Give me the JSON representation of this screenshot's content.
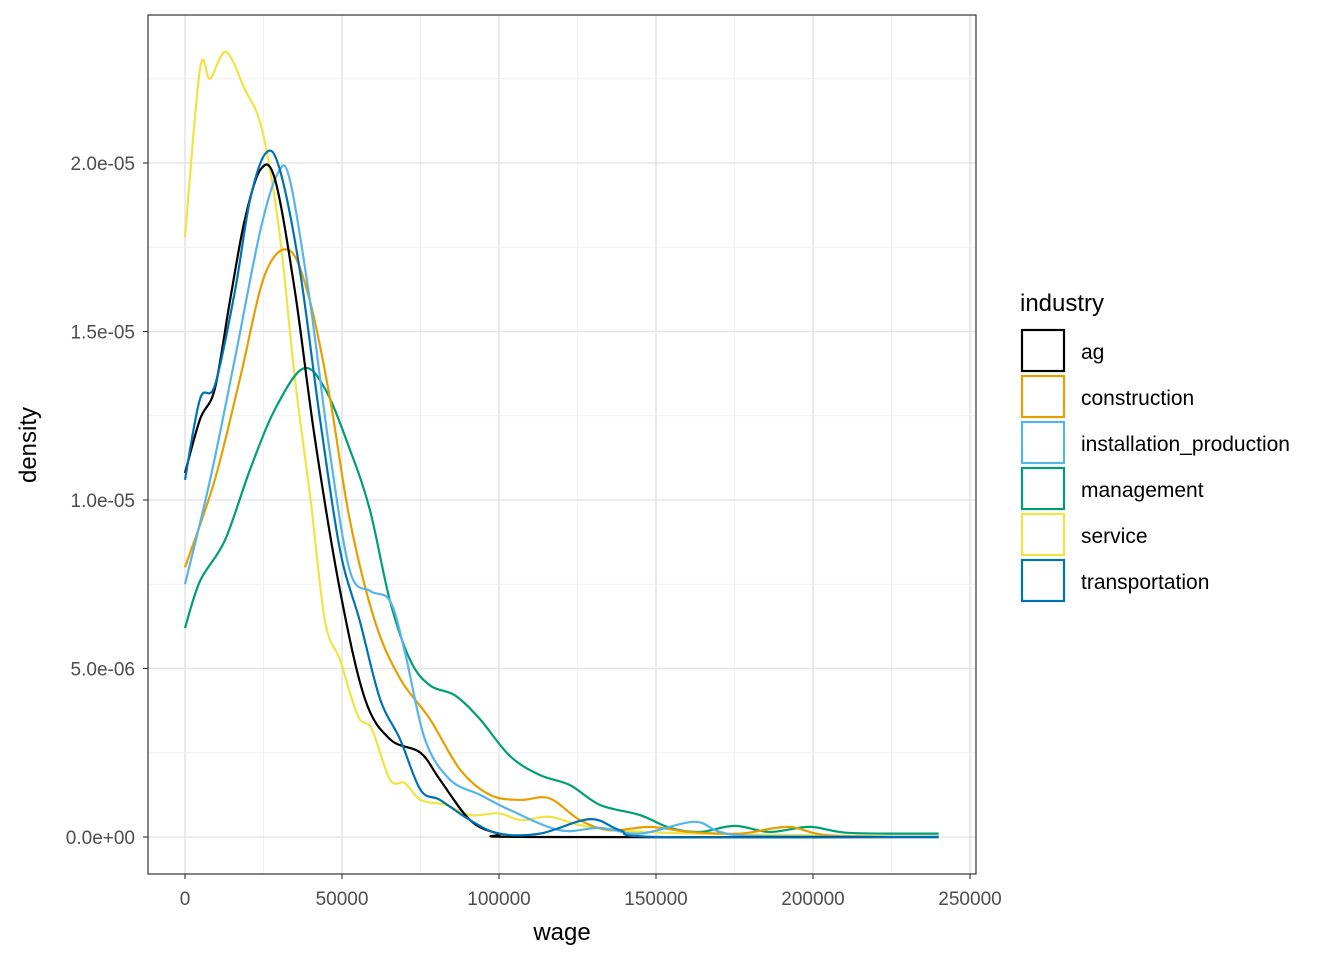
{
  "chart_data": {
    "type": "line",
    "title": "",
    "xlabel": "wage",
    "ylabel": "density",
    "xlim": [
      -12000,
      252000
    ],
    "ylim": [
      -1.1e-06,
      2.45e-05
    ],
    "x_ticks": [
      0,
      50000,
      100000,
      150000,
      200000,
      250000
    ],
    "x_tick_labels": [
      "0",
      "50000",
      "100000",
      "150000",
      "200000",
      "250000"
    ],
    "y_ticks": [
      0,
      5e-06,
      1e-05,
      1.5e-05,
      2e-05
    ],
    "y_tick_labels": [
      "0.0e+00",
      "5.0e-06",
      "1.0e-05",
      "1.5e-05",
      "2.0e-05"
    ],
    "grid": true,
    "legend_title": "industry",
    "legend_position": "right",
    "series": [
      {
        "name": "ag",
        "color": "#000000",
        "points": [
          [
            0,
            1.08e-05
          ],
          [
            4800,
            1.24e-05
          ],
          [
            9500,
            1.33e-05
          ],
          [
            14300,
            1.59e-05
          ],
          [
            19000,
            1.83e-05
          ],
          [
            24000,
            1.98e-05
          ],
          [
            28700,
            1.95e-05
          ],
          [
            35000,
            1.62e-05
          ],
          [
            41400,
            1.18e-05
          ],
          [
            49400,
            7.3e-06
          ],
          [
            57300,
            4.1e-06
          ],
          [
            65300,
            2.9e-06
          ],
          [
            75000,
            2.5e-06
          ],
          [
            81200,
            1.7e-06
          ],
          [
            90800,
            5e-07
          ],
          [
            100000,
            1e-07
          ],
          [
            110000,
            0
          ],
          [
            240000,
            0
          ]
        ]
      },
      {
        "name": "construction",
        "color": "#E69F00",
        "points": [
          [
            0,
            8e-06
          ],
          [
            9500,
            1.06e-05
          ],
          [
            17500,
            1.36e-05
          ],
          [
            25500,
            1.67e-05
          ],
          [
            33400,
            1.74e-05
          ],
          [
            39800,
            1.59e-05
          ],
          [
            46200,
            1.3e-05
          ],
          [
            52500,
            9.4e-06
          ],
          [
            60500,
            6.4e-06
          ],
          [
            68500,
            4.7e-06
          ],
          [
            78000,
            3.5e-06
          ],
          [
            87600,
            2e-06
          ],
          [
            97100,
            1.25e-06
          ],
          [
            106700,
            1.1e-06
          ],
          [
            116000,
            1.15e-06
          ],
          [
            125800,
            5e-07
          ],
          [
            135400,
            2e-07
          ],
          [
            148100,
            3e-07
          ],
          [
            160800,
            1.5e-07
          ],
          [
            176800,
            1e-07
          ],
          [
            192000,
            3e-07
          ],
          [
            205400,
            5e-08
          ],
          [
            240000,
            0
          ]
        ]
      },
      {
        "name": "installation_production",
        "color": "#56B4E9",
        "points": [
          [
            0,
            7.5e-06
          ],
          [
            8000,
            1.06e-05
          ],
          [
            15900,
            1.42e-05
          ],
          [
            24000,
            1.8e-05
          ],
          [
            29600,
            1.97e-05
          ],
          [
            33400,
            1.95e-05
          ],
          [
            39800,
            1.59e-05
          ],
          [
            46000,
            1.15e-05
          ],
          [
            52500,
            7.9e-06
          ],
          [
            59000,
            7.3e-06
          ],
          [
            65300,
            7e-06
          ],
          [
            70000,
            5.5e-06
          ],
          [
            76400,
            2.9e-06
          ],
          [
            84400,
            1.7e-06
          ],
          [
            94000,
            1.25e-06
          ],
          [
            103500,
            8e-07
          ],
          [
            119400,
            2e-07
          ],
          [
            132200,
            2.7e-07
          ],
          [
            144900,
            1e-07
          ],
          [
            162000,
            4.5e-07
          ],
          [
            170400,
            1.5e-07
          ],
          [
            183100,
            3e-08
          ],
          [
            240000,
            0
          ]
        ]
      },
      {
        "name": "management",
        "color": "#009E73",
        "points": [
          [
            0,
            6.2e-06
          ],
          [
            4800,
            7.6e-06
          ],
          [
            12700,
            8.8e-06
          ],
          [
            20700,
            1.09e-05
          ],
          [
            28700,
            1.27e-05
          ],
          [
            37600,
            1.39e-05
          ],
          [
            44600,
            1.33e-05
          ],
          [
            52500,
            1.15e-05
          ],
          [
            58900,
            9.7e-06
          ],
          [
            65300,
            7e-06
          ],
          [
            71700,
            5.25e-06
          ],
          [
            78000,
            4.5e-06
          ],
          [
            86000,
            4.2e-06
          ],
          [
            93900,
            3.5e-06
          ],
          [
            103500,
            2.4e-06
          ],
          [
            113000,
            1.84e-06
          ],
          [
            122600,
            1.54e-06
          ],
          [
            132200,
            9.5e-07
          ],
          [
            144900,
            6.5e-07
          ],
          [
            154500,
            2.7e-07
          ],
          [
            164000,
            1.5e-07
          ],
          [
            175000,
            3.3e-07
          ],
          [
            186300,
            1.5e-07
          ],
          [
            199000,
            3e-07
          ],
          [
            211800,
            1.2e-07
          ],
          [
            240000,
            1e-07
          ]
        ]
      },
      {
        "name": "service",
        "color": "#F0E442",
        "points": [
          [
            0,
            1.78e-05
          ],
          [
            4800,
            2.28e-05
          ],
          [
            8000,
            2.25e-05
          ],
          [
            13000,
            2.33e-05
          ],
          [
            19000,
            2.22e-05
          ],
          [
            24500,
            2.1e-05
          ],
          [
            30000,
            1.8e-05
          ],
          [
            35000,
            1.36e-05
          ],
          [
            40000,
            1e-05
          ],
          [
            44600,
            6.4e-06
          ],
          [
            49400,
            5.25e-06
          ],
          [
            55000,
            3.6e-06
          ],
          [
            59500,
            3.2e-06
          ],
          [
            65300,
            1.7e-06
          ],
          [
            70000,
            1.6e-06
          ],
          [
            75000,
            1.1e-06
          ],
          [
            83000,
            9.5e-07
          ],
          [
            91000,
            6.5e-07
          ],
          [
            100000,
            7e-07
          ],
          [
            107000,
            5e-07
          ],
          [
            116000,
            6e-07
          ],
          [
            126000,
            3.5e-07
          ],
          [
            138000,
            2e-07
          ],
          [
            164000,
            1e-07
          ],
          [
            240000,
            0
          ]
        ]
      },
      {
        "name": "transportation",
        "color": "#0072B2",
        "points": [
          [
            0,
            1.06e-05
          ],
          [
            4800,
            1.3e-05
          ],
          [
            9500,
            1.34e-05
          ],
          [
            15900,
            1.62e-05
          ],
          [
            20700,
            1.89e-05
          ],
          [
            25800,
            2.03e-05
          ],
          [
            30200,
            1.98e-05
          ],
          [
            36600,
            1.68e-05
          ],
          [
            43000,
            1.24e-05
          ],
          [
            49400,
            8.5e-06
          ],
          [
            55700,
            6.4e-06
          ],
          [
            62100,
            4.1e-06
          ],
          [
            68500,
            2.9e-06
          ],
          [
            75000,
            1.4e-06
          ],
          [
            81200,
            1.1e-06
          ],
          [
            90800,
            5e-07
          ],
          [
            100000,
            1e-07
          ],
          [
            113000,
            1e-07
          ],
          [
            129000,
            5.3e-07
          ],
          [
            138600,
            2e-07
          ],
          [
            151300,
            0
          ],
          [
            240000,
            0
          ]
        ]
      }
    ]
  }
}
